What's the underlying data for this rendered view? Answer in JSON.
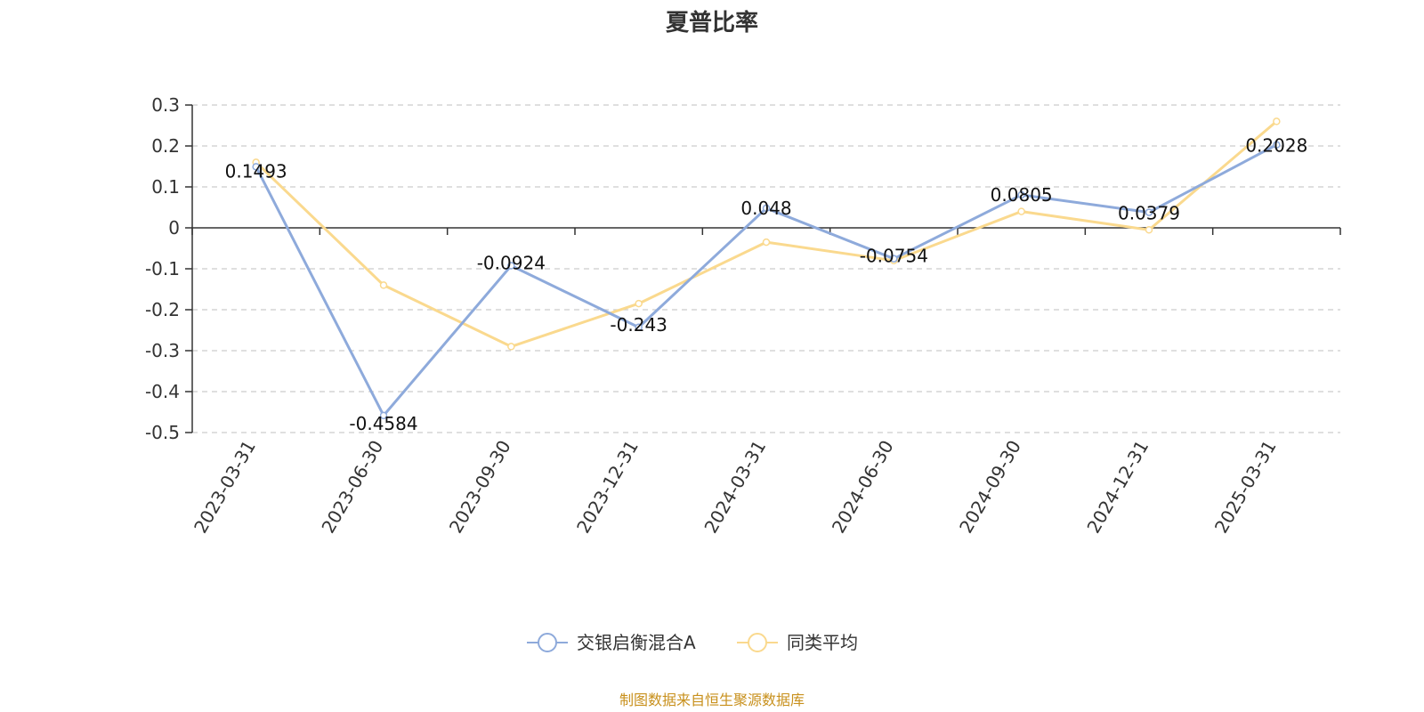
{
  "chart_data": {
    "type": "line",
    "title": "夏普比率",
    "x": [
      "2023-03-31",
      "2023-06-30",
      "2023-09-30",
      "2023-12-31",
      "2024-03-31",
      "2024-06-30",
      "2024-09-30",
      "2024-12-31",
      "2025-03-31"
    ],
    "series": [
      {
        "name": "交银启衡混合A",
        "color": "#8eaadb",
        "values": [
          0.1493,
          -0.4584,
          -0.0924,
          -0.243,
          0.048,
          -0.0754,
          0.0805,
          0.0379,
          0.2028
        ],
        "labels": [
          "0.1493",
          "-0.4584",
          "-0.0924",
          "-0.243",
          "0.048",
          "-0.0754",
          "0.0805",
          "0.0379",
          "0.2028"
        ]
      },
      {
        "name": "同类平均",
        "color": "#fad98e",
        "values": [
          0.16,
          -0.14,
          -0.29,
          -0.185,
          -0.035,
          -0.08,
          0.04,
          -0.005,
          0.26
        ]
      }
    ],
    "y_ticks": [
      "0.3",
      "0.2",
      "0.1",
      "0",
      "-0.1",
      "-0.2",
      "-0.3",
      "-0.4",
      "-0.5"
    ],
    "ylim": [
      -0.5,
      0.3
    ],
    "grid": true,
    "legend_position": "bottom"
  },
  "source_note": "制图数据来自恒生聚源数据库"
}
